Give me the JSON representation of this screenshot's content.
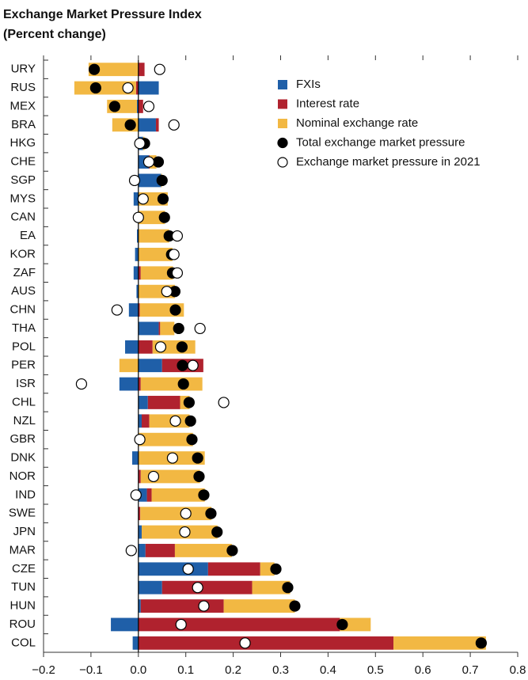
{
  "chart_data": {
    "type": "bar",
    "orientation": "horizontal",
    "title": "Exchange Market Pressure Index",
    "subtitle": "(Percent change)",
    "categories": [
      "URY",
      "RUS",
      "MEX",
      "BRA",
      "HKG",
      "CHE",
      "SGP",
      "MYS",
      "CAN",
      "EA",
      "KOR",
      "ZAF",
      "AUS",
      "CHN",
      "THA",
      "POL",
      "PER",
      "ISR",
      "CHL",
      "NZL",
      "GBR",
      "DNK",
      "NOR",
      "IND",
      "SWE",
      "JPN",
      "MAR",
      "CZE",
      "TUN",
      "HUN",
      "ROU",
      "COL"
    ],
    "series": [
      {
        "name": "FXIs",
        "color": "#1f5fa8",
        "mark": "bar",
        "values": [
          0,
          0.043,
          -0.003,
          0.037,
          0.01,
          0.022,
          0.048,
          -0.01,
          0,
          -0.003,
          -0.007,
          -0.01,
          -0.004,
          -0.02,
          0.043,
          -0.028,
          0.05,
          -0.04,
          0.02,
          0.007,
          0,
          -0.013,
          0,
          0.018,
          0,
          0.007,
          0.015,
          0.147,
          0.05,
          0.005,
          -0.058,
          -0.012
        ]
      },
      {
        "name": "Interest rate",
        "color": "#b0222e",
        "mark": "bar",
        "values": [
          0.013,
          -0.005,
          0.01,
          0.006,
          0,
          0.002,
          0,
          0,
          0,
          0,
          0,
          0.005,
          0,
          0.003,
          0.003,
          0.03,
          0.087,
          0.005,
          0.068,
          0.016,
          0,
          0,
          0.005,
          0.01,
          0.004,
          0,
          0.062,
          0.11,
          0.19,
          0.175,
          0.425,
          0.538
        ]
      },
      {
        "name": "Nominal exchange rate",
        "color": "#f2b843",
        "mark": "bar",
        "values": [
          -0.105,
          -0.13,
          -0.063,
          -0.055,
          0.003,
          0.014,
          0.002,
          0.062,
          0.056,
          0.065,
          0.072,
          0.068,
          0.077,
          0.093,
          0.03,
          0.09,
          -0.04,
          0.13,
          0.02,
          0.085,
          0.115,
          0.14,
          0.125,
          0.112,
          0.15,
          0.16,
          0.12,
          0.03,
          0.08,
          0.15,
          0.065,
          0.195
        ]
      },
      {
        "name": "Total exchange market pressure",
        "color": "#000000",
        "mark": "dot",
        "values": [
          -0.093,
          -0.09,
          -0.05,
          -0.017,
          0.013,
          0.042,
          0.05,
          0.052,
          0.055,
          0.065,
          0.07,
          0.072,
          0.077,
          0.078,
          0.085,
          0.092,
          0.093,
          0.095,
          0.107,
          0.11,
          0.113,
          0.125,
          0.128,
          0.138,
          0.153,
          0.166,
          0.198,
          0.29,
          0.315,
          0.33,
          0.43,
          0.723
        ]
      },
      {
        "name": "Exchange market pressure in 2021",
        "color": "#ffffff",
        "mark": "dot",
        "values": [
          0.045,
          -0.022,
          0.022,
          0.075,
          0.003,
          0.022,
          -0.008,
          0.01,
          0,
          0.082,
          0.075,
          0.082,
          0.06,
          -0.045,
          0.13,
          0.047,
          0.115,
          -0.12,
          0.18,
          0.078,
          0.003,
          0.072,
          0.032,
          -0.005,
          0.1,
          0.098,
          -0.015,
          0.105,
          0.125,
          0.138,
          0.09,
          0.225
        ]
      }
    ],
    "xlim": [
      -0.2,
      0.8
    ],
    "xticks": [
      {
        "value": -0.2,
        "label": "−0.2"
      },
      {
        "value": -0.1,
        "label": "−0.1"
      },
      {
        "value": 0,
        "label": "0.0"
      },
      0.1,
      0.2,
      0.3,
      0.4,
      0.5,
      0.6,
      0.7,
      0.8
    ],
    "legend": "upper right"
  }
}
